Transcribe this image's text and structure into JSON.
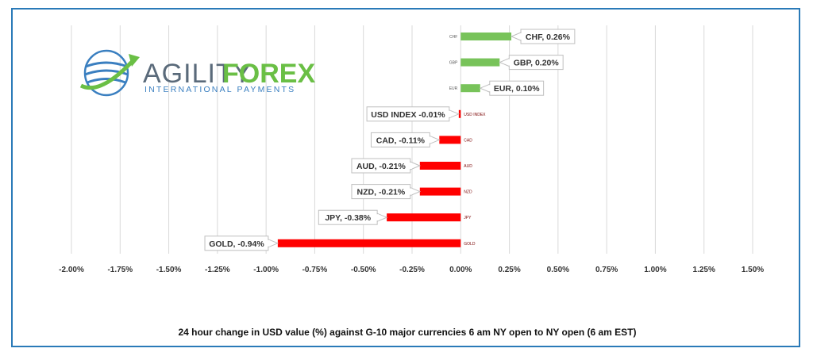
{
  "chart_data": {
    "type": "bar",
    "orientation": "horizontal",
    "title": "24 hour change in  USD value (%)  against  G-10 major currencies  6 am NY open to NY open  (6 am EST)",
    "xlim": [
      -2.0,
      1.5
    ],
    "x_ticks": [
      "-2.00%",
      "-1.75%",
      "-1.50%",
      "-1.25%",
      "-1.00%",
      "-0.75%",
      "-0.50%",
      "-0.25%",
      "0.00%",
      "0.25%",
      "0.50%",
      "0.75%",
      "1.00%",
      "1.25%",
      "1.50%"
    ],
    "grid": true,
    "categories": [
      "CHF",
      "GBP",
      "EUR",
      "USD INDEX",
      "CAD",
      "AUD",
      "NZD",
      "JPY",
      "GOLD"
    ],
    "values": [
      0.26,
      0.2,
      0.1,
      -0.01,
      -0.11,
      -0.21,
      -0.21,
      -0.38,
      -0.94
    ],
    "data_labels": [
      "CHF, 0.26%",
      "GBP, 0.20%",
      "EUR, 0.10%",
      "USD INDEX -0.01%",
      "CAD, -0.11%",
      "AUD, -0.21%",
      "NZD, -0.21%",
      "JPY, -0.38%",
      "GOLD, -0.94%"
    ],
    "colors": {
      "positive": "#78c35a",
      "negative": "#ff0000",
      "grid": "#d9d9d9",
      "frame": "#2a7ab8"
    }
  },
  "logo": {
    "brand_main": "AGILITY",
    "brand_accent": "FOREX",
    "tagline": "INTERNATIONAL PAYMENTS",
    "colors": {
      "main": "#5a6a7a",
      "accent": "#6abf45",
      "globe": "#3a7fc0"
    }
  }
}
